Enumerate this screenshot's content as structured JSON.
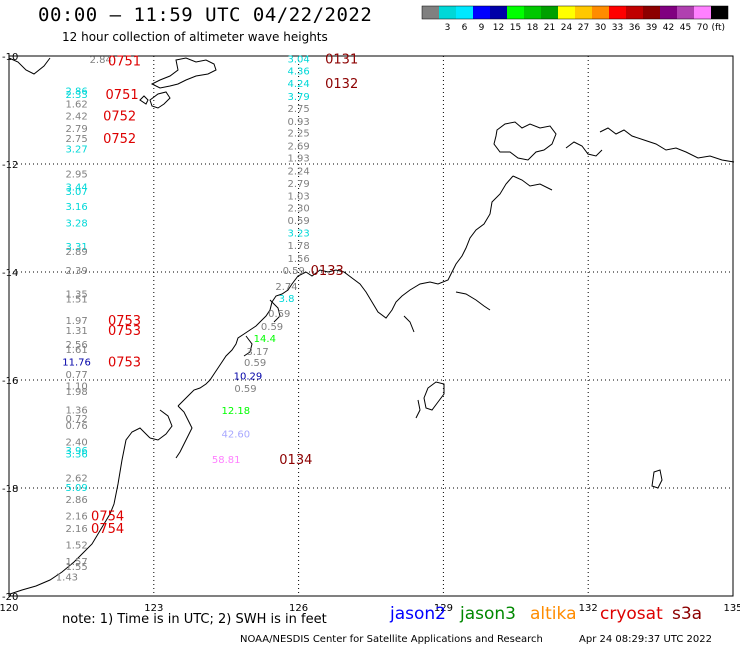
{
  "header": {
    "title": "00:00 – 11:59 UTC 04/22/2022",
    "subtitle": "12 hour collection of altimeter wave heights"
  },
  "colorbar": {
    "unit": "(ft)",
    "bins": [
      {
        "label": "",
        "color": "#808080"
      },
      {
        "label": "3",
        "color": "#00d8d8"
      },
      {
        "label": "6",
        "color": "#00e8ff"
      },
      {
        "label": "9",
        "color": "#0000ff"
      },
      {
        "label": "12",
        "color": "#0000a8"
      },
      {
        "label": "15",
        "color": "#00ff00"
      },
      {
        "label": "18",
        "color": "#00c800"
      },
      {
        "label": "21",
        "color": "#00a000"
      },
      {
        "label": "24",
        "color": "#ffff00"
      },
      {
        "label": "27",
        "color": "#ffc800"
      },
      {
        "label": "30",
        "color": "#ff8c00"
      },
      {
        "label": "33",
        "color": "#ff0000"
      },
      {
        "label": "36",
        "color": "#c00000"
      },
      {
        "label": "39",
        "color": "#8c0000"
      },
      {
        "label": "42",
        "color": "#800080"
      },
      {
        "label": "45",
        "color": "#b040b0"
      },
      {
        "label": "70",
        "color": "#ff80ff"
      },
      {
        "label": "",
        "color": "#000000"
      }
    ]
  },
  "map": {
    "lon_ticks": [
      "120",
      "123",
      "126",
      "129",
      "132",
      "135"
    ],
    "lat_ticks": [
      "-10",
      "-12",
      "-14",
      "-16",
      "-18",
      "-20"
    ],
    "lon_range": [
      120,
      135
    ],
    "lat_range": [
      -20,
      -10
    ],
    "grid": "dotted"
  },
  "observations": [
    {
      "lon": 121.9,
      "lat": -10.06,
      "text": "2.84",
      "color": "#808080"
    },
    {
      "lon": 121.4,
      "lat": -10.64,
      "text": "2.86",
      "color": "#00d8d8"
    },
    {
      "lon": 121.4,
      "lat": -10.7,
      "text": "2.33",
      "color": "#00d8d8"
    },
    {
      "lon": 121.4,
      "lat": -10.88,
      "text": "1.62",
      "color": "#808080"
    },
    {
      "lon": 121.4,
      "lat": -11.1,
      "text": "2.42",
      "color": "#808080"
    },
    {
      "lon": 121.4,
      "lat": -11.33,
      "text": "2.79",
      "color": "#808080"
    },
    {
      "lon": 121.4,
      "lat": -11.52,
      "text": "2.75",
      "color": "#808080"
    },
    {
      "lon": 121.4,
      "lat": -11.71,
      "text": "3.27",
      "color": "#00d8d8"
    },
    {
      "lon": 121.4,
      "lat": -12.18,
      "text": "2.95",
      "color": "#808080"
    },
    {
      "lon": 121.4,
      "lat": -12.42,
      "text": "3.44",
      "color": "#00d8d8"
    },
    {
      "lon": 121.4,
      "lat": -12.5,
      "text": "3.07",
      "color": "#00d8d8"
    },
    {
      "lon": 121.4,
      "lat": -12.78,
      "text": "3.16",
      "color": "#00d8d8"
    },
    {
      "lon": 121.4,
      "lat": -13.08,
      "text": "3.28",
      "color": "#00d8d8"
    },
    {
      "lon": 121.4,
      "lat": -13.52,
      "text": "3.31",
      "color": "#00d8d8"
    },
    {
      "lon": 121.4,
      "lat": -13.61,
      "text": "2.89",
      "color": "#808080"
    },
    {
      "lon": 121.4,
      "lat": -13.96,
      "text": "2.39",
      "color": "#808080"
    },
    {
      "lon": 121.4,
      "lat": -14.4,
      "text": "1.35",
      "color": "#808080"
    },
    {
      "lon": 121.4,
      "lat": -14.49,
      "text": "1.51",
      "color": "#808080"
    },
    {
      "lon": 121.4,
      "lat": -14.89,
      "text": "1.97",
      "color": "#808080"
    },
    {
      "lon": 121.4,
      "lat": -15.07,
      "text": "1.31",
      "color": "#808080"
    },
    {
      "lon": 121.4,
      "lat": -15.33,
      "text": "2.56",
      "color": "#808080"
    },
    {
      "lon": 121.4,
      "lat": -15.43,
      "text": "1.61",
      "color": "#808080"
    },
    {
      "lon": 121.4,
      "lat": -15.66,
      "text": "11.76",
      "color": "#0000a8"
    },
    {
      "lon": 121.4,
      "lat": -15.89,
      "text": "0.77",
      "color": "#808080"
    },
    {
      "lon": 121.4,
      "lat": -16.1,
      "text": "1.10",
      "color": "#808080"
    },
    {
      "lon": 121.4,
      "lat": -16.2,
      "text": "1.98",
      "color": "#808080"
    },
    {
      "lon": 121.4,
      "lat": -16.55,
      "text": "1.36",
      "color": "#808080"
    },
    {
      "lon": 121.4,
      "lat": -16.7,
      "text": "0.72",
      "color": "#808080"
    },
    {
      "lon": 121.4,
      "lat": -16.83,
      "text": "0.76",
      "color": "#808080"
    },
    {
      "lon": 121.4,
      "lat": -17.14,
      "text": "2.40",
      "color": "#808080"
    },
    {
      "lon": 121.4,
      "lat": -17.3,
      "text": "3.96",
      "color": "#00d8d8"
    },
    {
      "lon": 121.4,
      "lat": -17.36,
      "text": "3.36",
      "color": "#00d8d8"
    },
    {
      "lon": 121.4,
      "lat": -17.81,
      "text": "2.62",
      "color": "#808080"
    },
    {
      "lon": 121.4,
      "lat": -17.98,
      "text": "5.09",
      "color": "#00d8d8"
    },
    {
      "lon": 121.4,
      "lat": -18.2,
      "text": "2.86",
      "color": "#808080"
    },
    {
      "lon": 121.4,
      "lat": -18.51,
      "text": "2.16",
      "color": "#808080"
    },
    {
      "lon": 121.4,
      "lat": -18.74,
      "text": "2.16",
      "color": "#808080"
    },
    {
      "lon": 121.4,
      "lat": -19.05,
      "text": "1.52",
      "color": "#808080"
    },
    {
      "lon": 121.4,
      "lat": -19.35,
      "text": "1.57",
      "color": "#808080"
    },
    {
      "lon": 121.4,
      "lat": -19.44,
      "text": "1.55",
      "color": "#808080"
    },
    {
      "lon": 121.2,
      "lat": -19.64,
      "text": "1.43",
      "color": "#808080"
    },
    {
      "lon": 126.0,
      "lat": -10.05,
      "text": "3.04",
      "color": "#00d8d8"
    },
    {
      "lon": 126.0,
      "lat": -10.27,
      "text": "4.36",
      "color": "#00d8d8"
    },
    {
      "lon": 126.0,
      "lat": -10.5,
      "text": "4.24",
      "color": "#00d8d8"
    },
    {
      "lon": 126.0,
      "lat": -10.74,
      "text": "3.79",
      "color": "#00d8d8"
    },
    {
      "lon": 126.0,
      "lat": -10.96,
      "text": "2.75",
      "color": "#808080"
    },
    {
      "lon": 126.0,
      "lat": -11.2,
      "text": "0.93",
      "color": "#808080"
    },
    {
      "lon": 126.0,
      "lat": -11.42,
      "text": "2.25",
      "color": "#808080"
    },
    {
      "lon": 126.0,
      "lat": -11.66,
      "text": "2.69",
      "color": "#808080"
    },
    {
      "lon": 126.0,
      "lat": -11.88,
      "text": "1.93",
      "color": "#808080"
    },
    {
      "lon": 126.0,
      "lat": -12.12,
      "text": "2.24",
      "color": "#808080"
    },
    {
      "lon": 126.0,
      "lat": -12.35,
      "text": "2.79",
      "color": "#808080"
    },
    {
      "lon": 126.0,
      "lat": -12.58,
      "text": "1.03",
      "color": "#808080"
    },
    {
      "lon": 126.0,
      "lat": -12.81,
      "text": "2.30",
      "color": "#808080"
    },
    {
      "lon": 126.0,
      "lat": -13.04,
      "text": "0.59",
      "color": "#808080"
    },
    {
      "lon": 126.0,
      "lat": -13.27,
      "text": "3.23",
      "color": "#00d8d8"
    },
    {
      "lon": 126.0,
      "lat": -13.5,
      "text": "1.78",
      "color": "#808080"
    },
    {
      "lon": 126.0,
      "lat": -13.74,
      "text": "1.56",
      "color": "#808080"
    },
    {
      "lon": 125.9,
      "lat": -13.96,
      "text": "0.59",
      "color": "#808080"
    },
    {
      "lon": 125.75,
      "lat": -14.26,
      "text": "2.74",
      "color": "#808080"
    },
    {
      "lon": 125.75,
      "lat": -14.48,
      "text": "3.8",
      "color": "#00d8d8"
    },
    {
      "lon": 125.6,
      "lat": -14.76,
      "text": "0.59",
      "color": "#808080"
    },
    {
      "lon": 125.45,
      "lat": -15.0,
      "text": "0.59",
      "color": "#808080"
    },
    {
      "lon": 125.3,
      "lat": -15.22,
      "text": "14.4",
      "color": "#00ff00"
    },
    {
      "lon": 125.15,
      "lat": -15.46,
      "text": "3.17",
      "color": "#808080"
    },
    {
      "lon": 125.1,
      "lat": -15.67,
      "text": "0.59",
      "color": "#808080"
    },
    {
      "lon": 124.95,
      "lat": -15.92,
      "text": "10.29",
      "color": "#0000a8"
    },
    {
      "lon": 124.9,
      "lat": -16.15,
      "text": "0.59",
      "color": "#808080"
    },
    {
      "lon": 124.7,
      "lat": -16.56,
      "text": "12.18",
      "color": "#00ff00"
    },
    {
      "lon": 124.7,
      "lat": -16.99,
      "text": "42.60",
      "color": "#a8a8ff"
    },
    {
      "lon": 124.5,
      "lat": -17.46,
      "text": "58.81",
      "color": "#ff80ff"
    }
  ],
  "passes": [
    {
      "lon": 122.05,
      "lat": -10.08,
      "text": "0751",
      "color": "#dd0000"
    },
    {
      "lon": 122.0,
      "lat": -10.7,
      "text": "0751",
      "color": "#dd0000"
    },
    {
      "lon": 121.95,
      "lat": -11.1,
      "text": "0752",
      "color": "#dd0000"
    },
    {
      "lon": 121.95,
      "lat": -11.52,
      "text": "0752",
      "color": "#dd0000"
    },
    {
      "lon": 122.05,
      "lat": -14.89,
      "text": "0753",
      "color": "#dd0000"
    },
    {
      "lon": 122.05,
      "lat": -15.07,
      "text": "0753",
      "color": "#dd0000"
    },
    {
      "lon": 122.05,
      "lat": -15.66,
      "text": "0753",
      "color": "#dd0000"
    },
    {
      "lon": 121.7,
      "lat": -18.51,
      "text": "0754",
      "color": "#dd0000"
    },
    {
      "lon": 121.7,
      "lat": -18.74,
      "text": "0754",
      "color": "#dd0000"
    },
    {
      "lon": 126.55,
      "lat": -10.05,
      "text": "0131",
      "color": "#8c0000"
    },
    {
      "lon": 126.55,
      "lat": -10.5,
      "text": "0132",
      "color": "#8c0000"
    },
    {
      "lon": 126.25,
      "lat": -13.96,
      "text": "0133",
      "color": "#8c0000"
    },
    {
      "lon": 125.6,
      "lat": -17.46,
      "text": "0134",
      "color": "#8c0000"
    }
  ],
  "note": "note: 1) Time is in UTC; 2) SWH is in feet",
  "satellites": [
    {
      "name": "jason2",
      "color": "#0000ff"
    },
    {
      "name": "jason3",
      "color": "#008800"
    },
    {
      "name": "altika",
      "color": "#ff8c00"
    },
    {
      "name": "cryosat",
      "color": "#dd0000"
    },
    {
      "name": "s3a",
      "color": "#8c0000"
    }
  ],
  "footer": {
    "credit": "NOAA/NESDIS Center for Satellite Applications and Research",
    "timestamp": "Apr 24 08:29:37 UTC 2022"
  }
}
